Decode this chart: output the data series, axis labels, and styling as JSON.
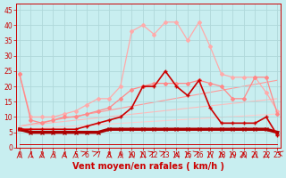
{
  "background_color": "#c8eef0",
  "grid_color": "#b0d8da",
  "xlabel": "Vent moyen/en rafales ( km/h )",
  "xlabel_color": "#cc0000",
  "xlabel_fontsize": 7,
  "yticks": [
    0,
    5,
    10,
    15,
    20,
    25,
    30,
    35,
    40,
    45
  ],
  "xticks": [
    0,
    1,
    2,
    3,
    4,
    5,
    6,
    7,
    8,
    9,
    10,
    11,
    12,
    13,
    14,
    15,
    16,
    17,
    18,
    19,
    20,
    21,
    22,
    23
  ],
  "ylim": [
    0,
    47
  ],
  "xlim": [
    -0.3,
    23.3
  ],
  "lines": [
    {
      "x": [
        0,
        1,
        2,
        3,
        4,
        5,
        6,
        7,
        8,
        9,
        10,
        11,
        12,
        13,
        14,
        15,
        16,
        17,
        18,
        19,
        20,
        21,
        22,
        23
      ],
      "y": [
        1,
        1,
        1,
        1,
        1,
        1,
        1,
        1,
        1,
        1,
        1,
        1,
        1,
        1,
        1,
        1,
        1,
        1,
        1,
        1,
        1,
        1,
        1,
        1
      ],
      "color": "#cc0000",
      "lw": 0.7,
      "marker": null,
      "markersize": 0,
      "zorder": 2
    },
    {
      "x": [
        0,
        1,
        2,
        3,
        4,
        5,
        6,
        7,
        8,
        9,
        10,
        11,
        12,
        13,
        14,
        15,
        16,
        17,
        18,
        19,
        20,
        21,
        22,
        23
      ],
      "y": [
        6,
        5,
        5,
        5,
        5,
        5,
        5,
        5,
        6,
        6,
        6,
        6,
        6,
        6,
        6,
        6,
        6,
        6,
        6,
        6,
        6,
        6,
        6,
        5
      ],
      "color": "#aa0000",
      "lw": 2.5,
      "marker": "x",
      "markersize": 2.5,
      "zorder": 3
    },
    {
      "x": [
        0,
        1,
        2,
        3,
        4,
        5,
        6,
        7,
        8,
        9,
        10,
        11,
        12,
        13,
        14,
        15,
        16,
        17,
        18,
        19,
        20,
        21,
        22,
        23
      ],
      "y": [
        6,
        6,
        6,
        6,
        6,
        6,
        7,
        8,
        9,
        10,
        13,
        20,
        20,
        25,
        20,
        17,
        22,
        13,
        8,
        8,
        8,
        8,
        10,
        4
      ],
      "color": "#cc0000",
      "lw": 1.2,
      "marker": "+",
      "markersize": 3.5,
      "zorder": 4
    },
    {
      "x": [
        0,
        1,
        2,
        3,
        4,
        5,
        6,
        7,
        8,
        9,
        10,
        11,
        12,
        13,
        14,
        15,
        16,
        17,
        18,
        19,
        20,
        21,
        22,
        23
      ],
      "y": [
        24,
        9,
        8,
        9,
        10,
        10,
        11,
        12,
        13,
        16,
        19,
        20,
        21,
        21,
        21,
        21,
        22,
        21,
        20,
        16,
        16,
        23,
        23,
        11
      ],
      "color": "#ff8888",
      "lw": 0.9,
      "marker": "D",
      "markersize": 2,
      "zorder": 3
    },
    {
      "x": [
        0,
        1,
        2,
        3,
        4,
        5,
        6,
        7,
        8,
        9,
        10,
        11,
        12,
        13,
        14,
        15,
        16,
        17,
        18,
        19,
        20,
        21,
        22,
        23
      ],
      "y": [
        24,
        10,
        10,
        10,
        11,
        12,
        14,
        16,
        16,
        20,
        38,
        40,
        37,
        41,
        41,
        35,
        41,
        33,
        24,
        23,
        23,
        23,
        18,
        12
      ],
      "color": "#ffaaaa",
      "lw": 0.9,
      "marker": "D",
      "markersize": 2,
      "zorder": 2
    },
    {
      "x": [
        0,
        23
      ],
      "y": [
        7,
        22
      ],
      "color": "#ff9999",
      "lw": 0.8,
      "marker": null,
      "markersize": 0,
      "zorder": 1
    },
    {
      "x": [
        0,
        23
      ],
      "y": [
        7,
        16
      ],
      "color": "#ffbbbb",
      "lw": 0.8,
      "marker": null,
      "markersize": 0,
      "zorder": 1
    },
    {
      "x": [
        0,
        23
      ],
      "y": [
        6,
        11
      ],
      "color": "#ffcccc",
      "lw": 0.8,
      "marker": null,
      "markersize": 0,
      "zorder": 1
    }
  ],
  "wind_directions": [
    270,
    270,
    270,
    270,
    270,
    270,
    225,
    225,
    270,
    270,
    270,
    270,
    225,
    225,
    270,
    270,
    225,
    270,
    270,
    270,
    270,
    270,
    270,
    315
  ],
  "tick_color": "#cc0000",
  "tick_fontsize": 5.5,
  "spine_color": "#cc0000"
}
